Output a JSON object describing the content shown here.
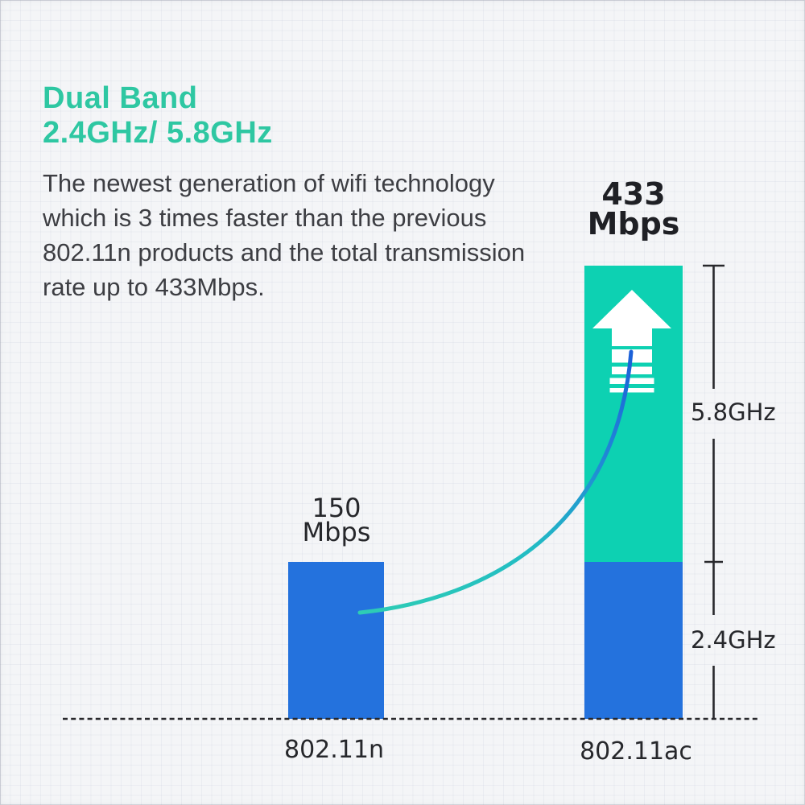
{
  "header": {
    "title": "Dual Band",
    "subtitle": "2.4GHz/ 5.8GHz",
    "accent_color": "#2ec7a2",
    "description_lines": [
      "The newest generation of wifi technology",
      "which is 3 times faster than the previous",
      "802.11n products and the total transmission",
      "rate up to 433Mbps."
    ]
  },
  "chart_data": {
    "type": "bar",
    "stacked": true,
    "categories": [
      "802.11n",
      "802.11ac"
    ],
    "series": [
      {
        "name": "2.4GHz",
        "color": "#2472dd",
        "values": [
          150,
          150
        ]
      },
      {
        "name": "5.8GHz",
        "color": "#0dd1b2",
        "values": [
          0,
          283
        ]
      }
    ],
    "totals_mbps": [
      150,
      433
    ],
    "unit": "Mbps",
    "ylim": [
      0,
      433
    ],
    "grid": false,
    "legend": "none",
    "baseline_style": "dashed",
    "value_labels": [
      {
        "value": "150",
        "unit": "Mbps"
      },
      {
        "value": "433",
        "unit": "Mbps"
      }
    ],
    "icons": {
      "up_arrow": "up-arrow-icon",
      "trend_curve": "growth-curve-icon"
    },
    "curve_gradient": [
      "#2ecdb4",
      "#22bcc4",
      "#2080d8",
      "#1c60d8"
    ],
    "ink_color": "#28282c"
  }
}
